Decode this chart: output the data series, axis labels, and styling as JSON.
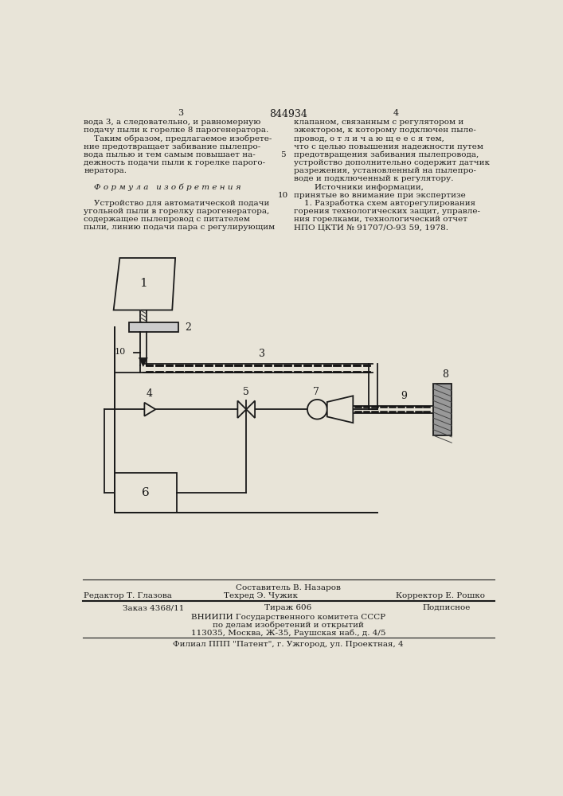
{
  "page_number_left": "3",
  "page_number_center": "844934",
  "page_number_right": "4",
  "text_left_col": [
    "вода 3, а следовательно, и равномерную",
    "подачу пыли к горелке 8 парогенератора.",
    "    Таким образом, предлагаемое изобрете-",
    "ние предотвращает забивание пылепро-",
    "вода пылью и тем самым повышает на-",
    "дежность подачи пыли к горелке парого-",
    "нератора.",
    "",
    "    Ф о р м у л а   и з о б р е т е н и я",
    "",
    "    Устройство для автоматической подачи",
    "угольной пыли в горелку парогенератора,",
    "содержащее пылепровод с питателем",
    "пыли, линию подачи пара с регулирующим"
  ],
  "text_right_col": [
    "клапаном, связанным с регулятором и",
    "эжектором, к которому подключен пыле-",
    "провод, о т л и ч а ю щ е е с я тем,",
    "что с целью повышения надежности путем",
    "предотвращения забивания пылепровода,",
    "устройство дополнительно содержит датчик",
    "разрежения, установленный на пылепро-",
    "воде и подключенный к регулятору.",
    "        Источники информации,",
    "принятые во внимание при экспертизе",
    "    1. Разработка схем авторегулирования",
    "горения технологических защит, управле-",
    "ния горелками, технологический отчет",
    "НПО ЦКТИ № 91707/О-93 59, 1978."
  ],
  "line_number_5": "5",
  "line_number_10": "10",
  "footer_sestavitel": "Составитель В. Назаров",
  "footer_redaktor": "Редактор Т. Глазова",
  "footer_tehred": "Техред Э. Чужик",
  "footer_korrektor": "Корректор Е. Рошко",
  "footer_zakaz": "Заказ 4368/11",
  "footer_tirazh": "Тираж 606",
  "footer_podpisnoe": "Подписное",
  "footer_vniip1": "ВНИИПИ Государственного комитета СССР",
  "footer_vniip2": "по делам изобретений и открытий",
  "footer_vniip3": "113035, Москва, Ж-35, Раушская наб., д. 4/5",
  "footer_filial": "Филиал ППП \"Патент\", г. Ужгород, ул. Проектная, 4",
  "bg_color": "#e8e4d8",
  "text_color": "#1a1a1a"
}
